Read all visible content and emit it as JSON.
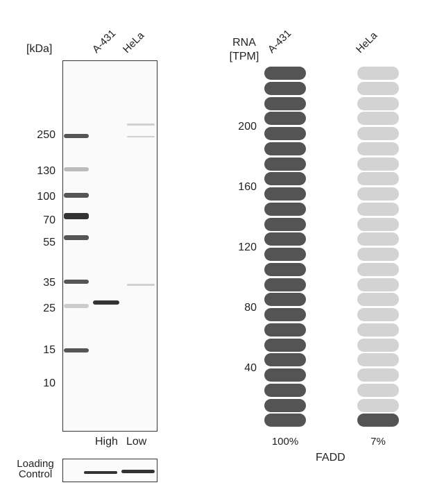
{
  "western_blot": {
    "unit_label": "[kDa]",
    "lanes": [
      "A-431",
      "HeLa"
    ],
    "mw_markers": [
      "250",
      "130",
      "100",
      "70",
      "55",
      "35",
      "25",
      "15",
      "10"
    ],
    "expression_labels": [
      "High",
      "Low"
    ],
    "loading_control_label": "Loading\nControl"
  },
  "rna": {
    "title_line1": "RNA",
    "title_line2": "[TPM]",
    "cell_lines": [
      "A-431",
      "HeLa"
    ],
    "y_ticks": [
      "200",
      "160",
      "120",
      "80",
      "40"
    ],
    "percentages": [
      "100%",
      "7%"
    ],
    "gene": "FADD",
    "colors": {
      "filled": "#545454",
      "empty": "#d3d3d3"
    }
  },
  "chart_data": {
    "type": "bar",
    "categories": [
      "A-431",
      "HeLa"
    ],
    "values_percent": [
      100,
      7
    ],
    "ylabel": "RNA [TPM]",
    "y_ticks": [
      40,
      80,
      120,
      160,
      200
    ],
    "segments_total": 24,
    "segments_filled": [
      24,
      1
    ]
  }
}
